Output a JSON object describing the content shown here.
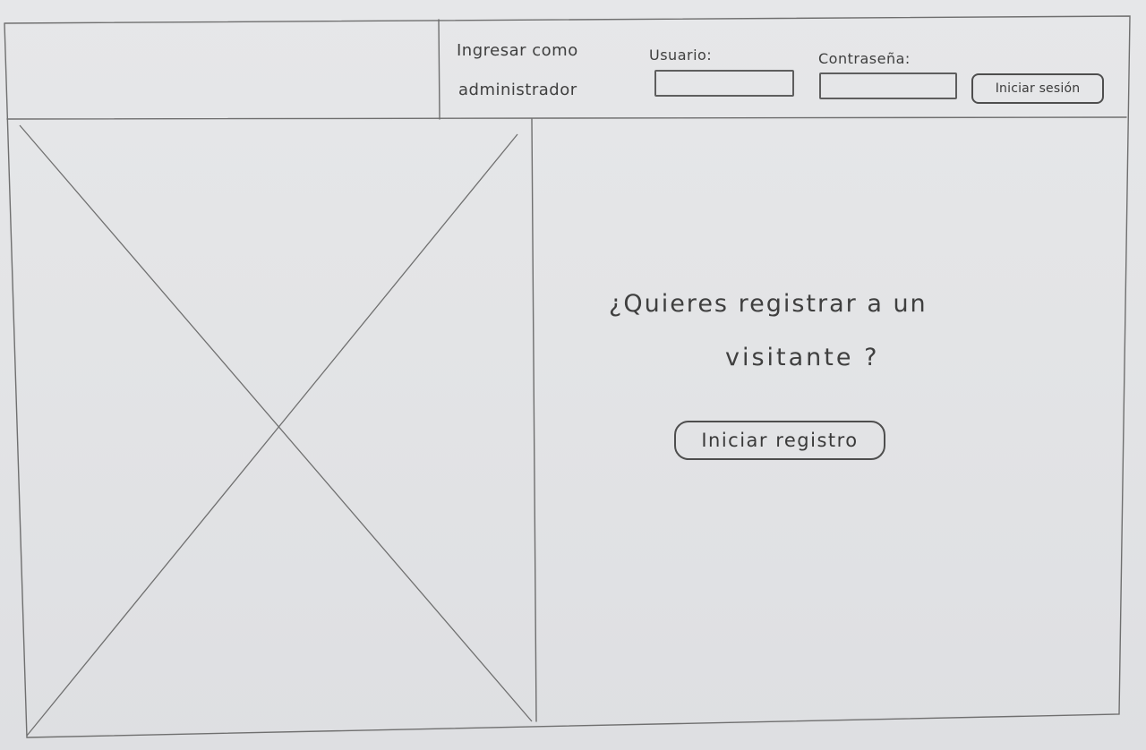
{
  "header": {
    "admin_line1": "Ingresar como",
    "admin_line2": "administrador",
    "user_label": "Usuario:",
    "user_value": "",
    "password_label": "Contraseña:",
    "password_value": "",
    "login_button": "Iniciar sesión"
  },
  "image_placeholder": {
    "kind": "image-placeholder"
  },
  "main": {
    "question_line1": "¿Quieres registrar a un",
    "question_line2": "visitante ?",
    "register_button": "Iniciar registro"
  }
}
